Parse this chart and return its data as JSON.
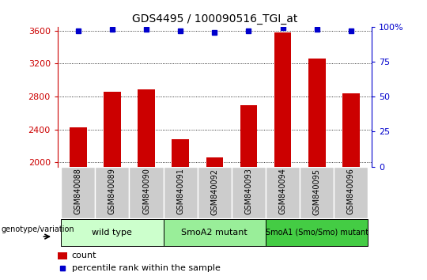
{
  "title": "GDS4495 / 100090516_TGI_at",
  "samples": [
    "GSM840088",
    "GSM840089",
    "GSM840090",
    "GSM840091",
    "GSM840092",
    "GSM840093",
    "GSM840094",
    "GSM840095",
    "GSM840096"
  ],
  "counts": [
    2430,
    2860,
    2890,
    2280,
    2060,
    2700,
    3580,
    3260,
    2840
  ],
  "percentiles": [
    97,
    98,
    98,
    97,
    96,
    97,
    99,
    98,
    97
  ],
  "ylim_left": [
    1950,
    3650
  ],
  "ylim_right": [
    0,
    100
  ],
  "yticks_left": [
    2000,
    2400,
    2800,
    3200,
    3600
  ],
  "yticks_right": [
    0,
    25,
    50,
    75,
    100
  ],
  "bar_color": "#CC0000",
  "dot_color": "#0000CC",
  "groups": [
    {
      "label": "wild type",
      "indices": [
        0,
        1,
        2
      ],
      "color": "#CCFFCC"
    },
    {
      "label": "SmoA2 mutant",
      "indices": [
        3,
        4,
        5
      ],
      "color": "#99EE99"
    },
    {
      "label": "SmoA1 (Smo/Smo) mutant",
      "indices": [
        6,
        7,
        8
      ],
      "color": "#44CC44"
    }
  ],
  "legend_count_color": "#CC0000",
  "legend_pct_color": "#0000CC",
  "grid_color": "#000000",
  "tick_color_left": "#CC0000",
  "tick_color_right": "#0000CC",
  "xtick_bg_color": "#CCCCCC",
  "xtick_sep_color": "#FFFFFF",
  "group_border_color": "#000000",
  "bar_width": 0.5
}
